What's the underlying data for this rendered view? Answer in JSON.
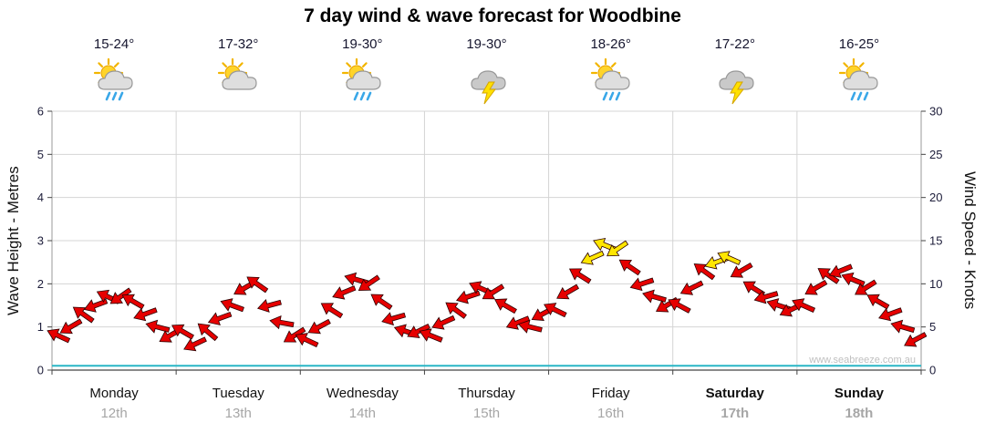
{
  "watermark": "www.seabreeze.com.au",
  "days": [
    {
      "name": "Monday",
      "date": "12th",
      "temp": "15-24°",
      "icon": "sun-cloud-rain",
      "bold": false
    },
    {
      "name": "Tuesday",
      "date": "13th",
      "temp": "17-32°",
      "icon": "sun-cloud",
      "bold": false
    },
    {
      "name": "Wednesday",
      "date": "14th",
      "temp": "19-30°",
      "icon": "sun-cloud-rain",
      "bold": false
    },
    {
      "name": "Thursday",
      "date": "15th",
      "temp": "19-30°",
      "icon": "cloud-lightning",
      "bold": false
    },
    {
      "name": "Friday",
      "date": "16th",
      "temp": "18-26°",
      "icon": "sun-cloud-rain",
      "bold": false
    },
    {
      "name": "Saturday",
      "date": "17th",
      "temp": "17-22°",
      "icon": "cloud-lightning",
      "bold": true
    },
    {
      "name": "Sunday",
      "date": "18th",
      "temp": "16-25°",
      "icon": "sun-cloud-rain",
      "bold": true
    }
  ],
  "chart_data": {
    "type": "scatter",
    "title": "7 day wind & wave forecast for Woodbine",
    "x_categories": [
      "Monday 12th",
      "Tuesday 13th",
      "Wednesday 14th",
      "Thursday 15th",
      "Friday 16th",
      "Saturday 17th",
      "Sunday 18th"
    ],
    "y_left": {
      "label": "Wave Height - Metres",
      "range": [
        0,
        6
      ],
      "ticks": [
        0,
        1,
        2,
        3,
        4,
        5,
        6
      ]
    },
    "y_right": {
      "label": "Wind Speed - Knots",
      "range": [
        0,
        30
      ],
      "ticks": [
        0,
        5,
        10,
        15,
        20,
        25,
        30
      ]
    },
    "grid": true,
    "points_per_day": 10,
    "arrow_colors": {
      "default": "#e60000",
      "strong": "#ffe600",
      "strong_threshold_knots": 12.5
    },
    "wind_series": [
      {
        "day": "Monday",
        "knots": [
          4,
          5,
          6.5,
          7.5,
          8.5,
          8.5,
          8,
          6.5,
          5,
          4
        ],
        "dirs": [
          205,
          150,
          215,
          160,
          205,
          145,
          210,
          160,
          195,
          150
        ]
      },
      {
        "day": "Tuesday",
        "knots": [
          4.5,
          3,
          4.5,
          6,
          7.5,
          9.5,
          10,
          7.5,
          5.5,
          4
        ],
        "dirs": [
          210,
          155,
          220,
          160,
          200,
          150,
          215,
          165,
          190,
          148
        ]
      },
      {
        "day": "Wednesday",
        "knots": [
          3.5,
          5,
          7,
          9,
          10.5,
          10,
          8,
          6,
          4.5,
          4.5
        ],
        "dirs": [
          205,
          152,
          212,
          158,
          196,
          146,
          214,
          164,
          198,
          154
        ]
      },
      {
        "day": "Thursday",
        "knots": [
          4,
          5.5,
          7,
          8.5,
          9.5,
          9,
          7.5,
          5.5,
          5,
          6.5
        ],
        "dirs": [
          202,
          156,
          216,
          162,
          204,
          148,
          210,
          158,
          194,
          152
        ]
      },
      {
        "day": "Friday",
        "knots": [
          7,
          9,
          11,
          13,
          14.5,
          14,
          12,
          10,
          8.5,
          7.5
        ],
        "dirs": [
          206,
          150,
          212,
          156,
          202,
          146,
          214,
          162,
          196,
          150
        ]
      },
      {
        "day": "Saturday",
        "knots": [
          7.5,
          9.5,
          11.5,
          12.5,
          13,
          11.5,
          9.5,
          8.5,
          7.5,
          7
        ],
        "dirs": [
          208,
          154,
          216,
          160,
          204,
          150,
          212,
          164,
          198,
          154
        ]
      },
      {
        "day": "Sunday",
        "knots": [
          7.5,
          9.5,
          11,
          11.5,
          10.5,
          9.5,
          8,
          6.5,
          5,
          3.5
        ],
        "dirs": [
          204,
          150,
          214,
          158,
          202,
          148,
          210,
          160,
          196,
          152
        ]
      }
    ],
    "wave_series_metres": [
      0.1,
      0.1,
      0.1,
      0.1,
      0.1,
      0.1,
      0.1
    ],
    "wave_color": "#29b6c5"
  }
}
